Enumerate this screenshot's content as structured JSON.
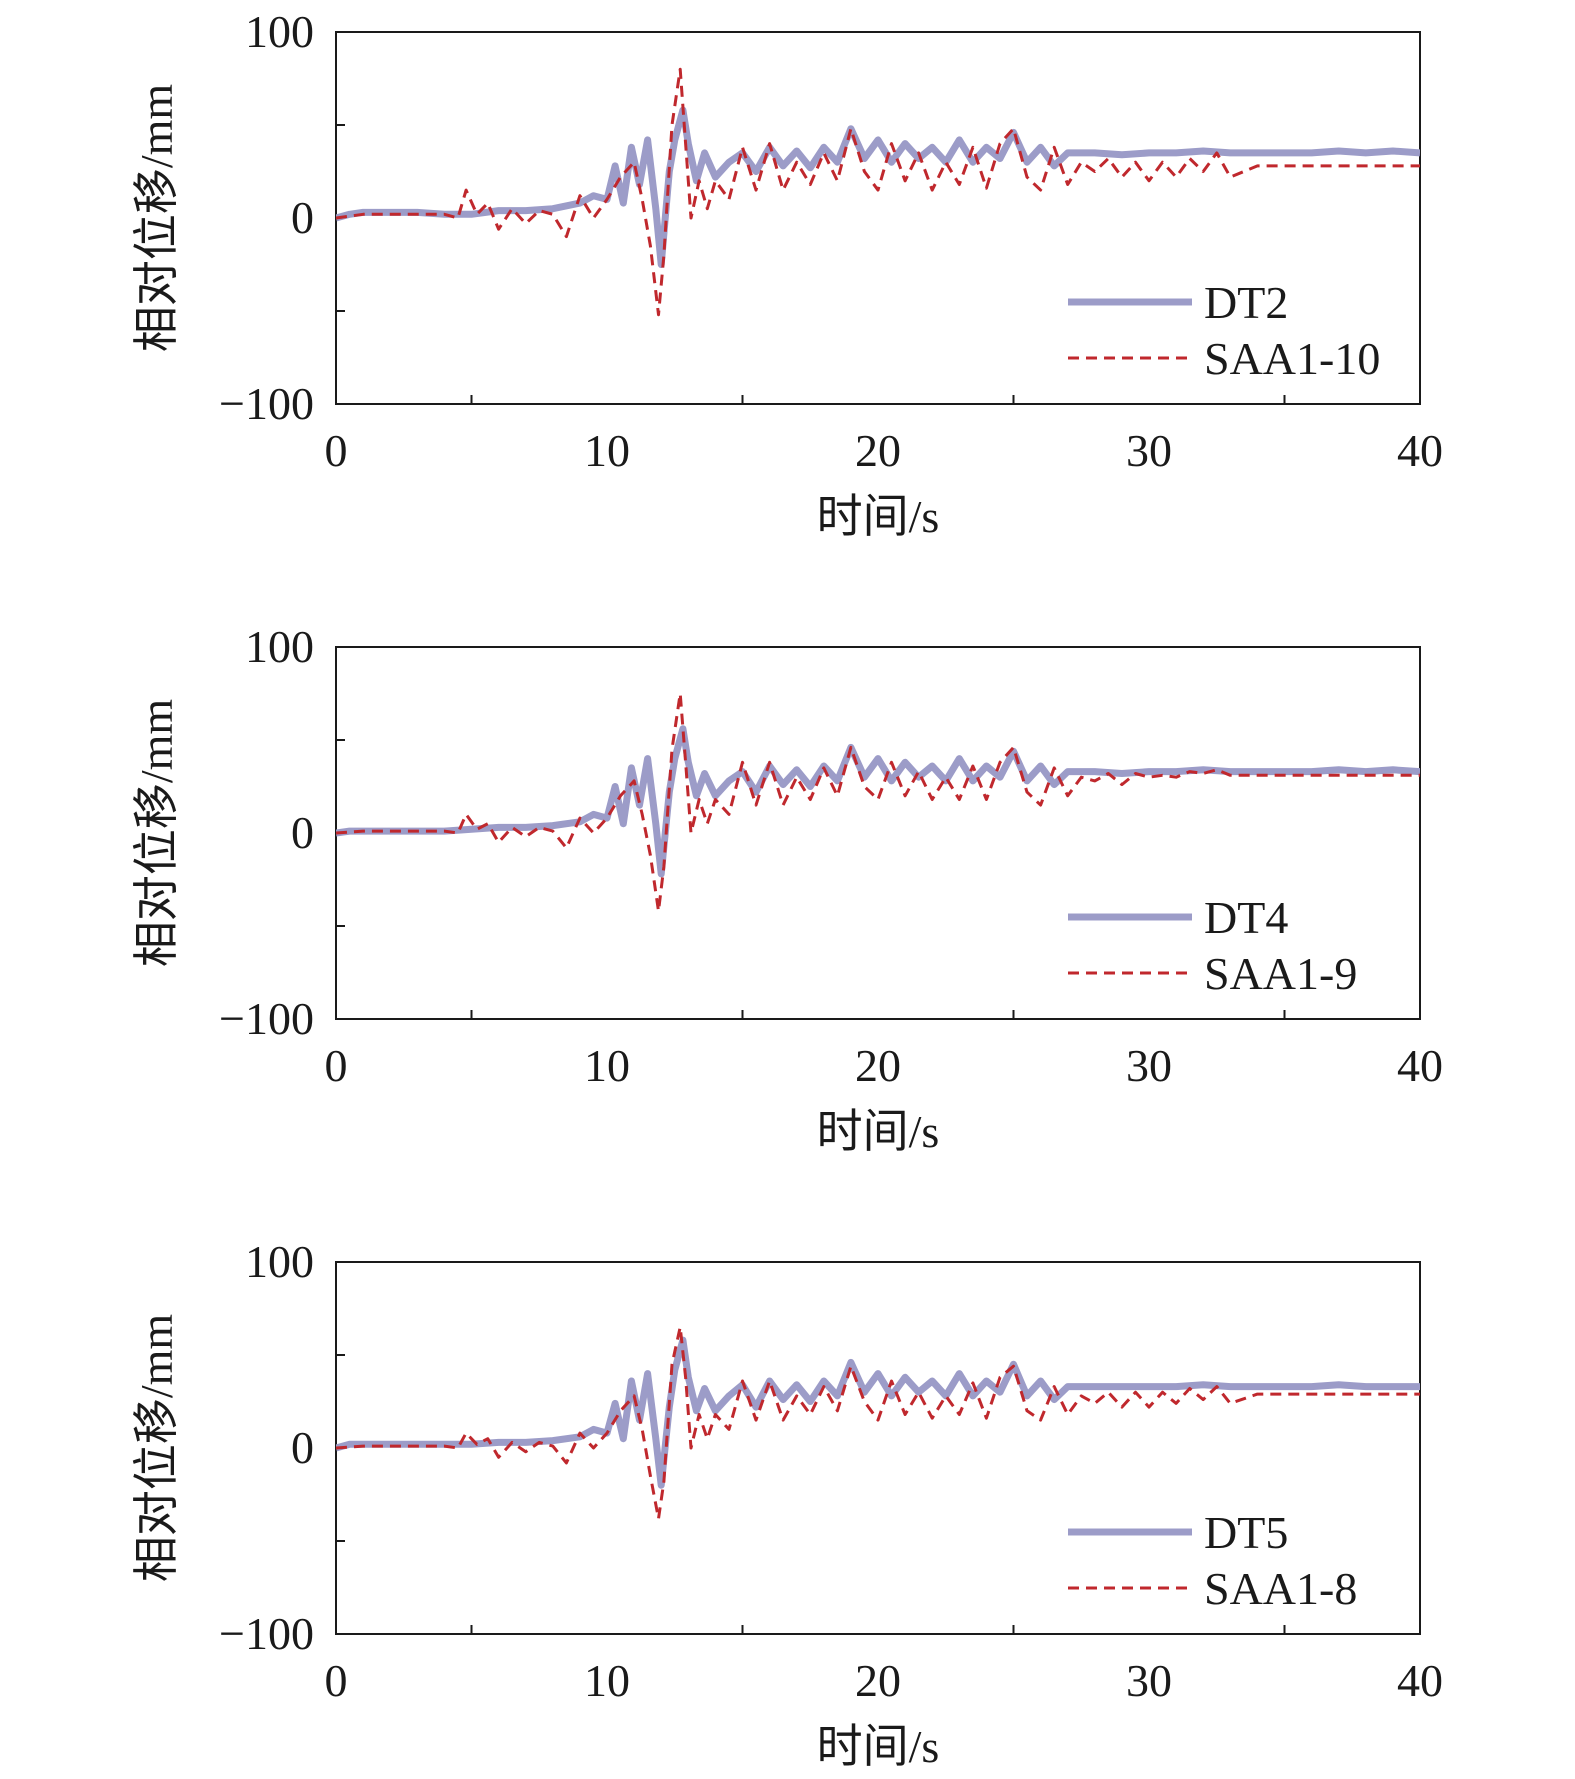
{
  "colors": {
    "dt_series": "#9c9cc8",
    "saa_series": "#c0282d",
    "axes": "#1a1a1a"
  },
  "chart_data": [
    {
      "type": "line",
      "xlabel": "时间/s",
      "ylabel": "相对位移/mm",
      "xlim": [
        0,
        40
      ],
      "ylim": [
        -100,
        100
      ],
      "xticks": [
        0,
        10,
        20,
        30,
        40
      ],
      "yticks": [
        -100,
        0,
        100
      ],
      "grid": false,
      "legend_position": "bottom-right",
      "series": [
        {
          "name": "DT2",
          "style": "solid-thick",
          "x": [
            0,
            0.5,
            1,
            2,
            3,
            4,
            5,
            6,
            7,
            8,
            9,
            9.5,
            10,
            10.3,
            10.6,
            10.9,
            11.2,
            11.5,
            11.8,
            12.0,
            12.3,
            12.5,
            12.8,
            13.0,
            13.3,
            13.6,
            14.0,
            14.5,
            15.0,
            15.5,
            16.0,
            16.5,
            17.0,
            17.5,
            18.0,
            18.5,
            19.0,
            19.5,
            20.0,
            20.5,
            21.0,
            21.5,
            22.0,
            22.5,
            23.0,
            23.5,
            24.0,
            24.5,
            25.0,
            25.5,
            26.0,
            26.5,
            27.0,
            28,
            29,
            30,
            31,
            32,
            33,
            34,
            35,
            36,
            37,
            38,
            39,
            40
          ],
          "y": [
            0,
            2,
            3,
            3,
            3,
            2,
            2,
            4,
            4,
            5,
            8,
            12,
            10,
            28,
            8,
            38,
            18,
            42,
            5,
            -25,
            25,
            42,
            58,
            40,
            20,
            35,
            22,
            30,
            35,
            25,
            38,
            28,
            36,
            27,
            38,
            30,
            48,
            32,
            42,
            30,
            40,
            32,
            38,
            30,
            42,
            30,
            38,
            32,
            46,
            30,
            38,
            28,
            35,
            35,
            34,
            35,
            35,
            36,
            35,
            35,
            35,
            35,
            36,
            35,
            36,
            35
          ]
        },
        {
          "name": "SAA1-10",
          "style": "dashed",
          "x": [
            0,
            1,
            2,
            3,
            4,
            4.5,
            4.8,
            5.2,
            5.6,
            6.0,
            6.5,
            7.0,
            7.5,
            8.0,
            8.5,
            9.0,
            9.5,
            10.0,
            10.5,
            11.0,
            11.3,
            11.6,
            11.9,
            12.1,
            12.4,
            12.7,
            12.9,
            13.1,
            13.4,
            13.7,
            14.0,
            14.5,
            15.0,
            15.5,
            16.0,
            16.5,
            17.0,
            17.5,
            18.0,
            18.5,
            19.0,
            19.5,
            20.0,
            20.5,
            21.0,
            21.5,
            22.0,
            22.5,
            23.0,
            23.5,
            24.0,
            24.5,
            25.0,
            25.5,
            26.0,
            26.5,
            27.0,
            27.5,
            28.0,
            28.5,
            29.0,
            29.5,
            30.0,
            30.5,
            31.0,
            31.5,
            32.0,
            32.5,
            33.0,
            34,
            35,
            36,
            37,
            38,
            39,
            40
          ],
          "y": [
            0,
            2,
            2,
            2,
            2,
            0,
            15,
            2,
            8,
            -6,
            5,
            -3,
            4,
            2,
            -10,
            12,
            0,
            10,
            22,
            30,
            10,
            -15,
            -52,
            -20,
            50,
            80,
            40,
            0,
            20,
            5,
            20,
            10,
            38,
            15,
            40,
            15,
            30,
            18,
            35,
            20,
            48,
            25,
            15,
            40,
            20,
            35,
            15,
            30,
            18,
            38,
            16,
            40,
            48,
            22,
            15,
            38,
            18,
            30,
            25,
            32,
            22,
            30,
            20,
            30,
            22,
            32,
            25,
            35,
            22,
            28,
            28,
            28,
            28,
            28,
            28,
            28
          ]
        }
      ]
    },
    {
      "type": "line",
      "xlabel": "时间/s",
      "ylabel": "相对位移/mm",
      "xlim": [
        0,
        40
      ],
      "ylim": [
        -100,
        100
      ],
      "xticks": [
        0,
        10,
        20,
        30,
        40
      ],
      "yticks": [
        -100,
        0,
        100
      ],
      "grid": false,
      "legend_position": "bottom-right",
      "series": [
        {
          "name": "DT4",
          "style": "solid-thick",
          "x": [
            0,
            0.5,
            1,
            2,
            3,
            4,
            5,
            6,
            7,
            8,
            9,
            9.5,
            10,
            10.3,
            10.6,
            10.9,
            11.2,
            11.5,
            11.8,
            12.0,
            12.3,
            12.5,
            12.8,
            13.0,
            13.3,
            13.6,
            14.0,
            14.5,
            15.0,
            15.5,
            16.0,
            16.5,
            17.0,
            17.5,
            18.0,
            18.5,
            19.0,
            19.5,
            20.0,
            20.5,
            21.0,
            21.5,
            22.0,
            22.5,
            23.0,
            23.5,
            24.0,
            24.5,
            25.0,
            25.5,
            26.0,
            26.5,
            27.0,
            28,
            29,
            30,
            31,
            32,
            33,
            34,
            35,
            36,
            37,
            38,
            39,
            40
          ],
          "y": [
            0,
            1,
            1,
            1,
            1,
            1,
            2,
            3,
            3,
            4,
            6,
            10,
            8,
            25,
            5,
            35,
            15,
            40,
            5,
            -22,
            22,
            40,
            56,
            38,
            20,
            32,
            20,
            28,
            33,
            22,
            36,
            26,
            34,
            25,
            36,
            28,
            46,
            30,
            40,
            28,
            38,
            30,
            36,
            28,
            40,
            28,
            36,
            30,
            44,
            28,
            36,
            26,
            33,
            33,
            32,
            33,
            33,
            34,
            33,
            33,
            33,
            33,
            34,
            33,
            34,
            33
          ]
        },
        {
          "name": "SAA1-9",
          "style": "dashed",
          "x": [
            0,
            1,
            2,
            3,
            4,
            4.5,
            4.8,
            5.2,
            5.6,
            6.0,
            6.5,
            7.0,
            7.5,
            8.0,
            8.5,
            9.0,
            9.5,
            10.0,
            10.5,
            11.0,
            11.3,
            11.6,
            11.9,
            12.1,
            12.4,
            12.7,
            12.9,
            13.1,
            13.4,
            13.7,
            14.0,
            14.5,
            15.0,
            15.5,
            16.0,
            16.5,
            17.0,
            17.5,
            18.0,
            18.5,
            19.0,
            19.5,
            20.0,
            20.5,
            21.0,
            21.5,
            22.0,
            22.5,
            23.0,
            23.5,
            24.0,
            24.5,
            25.0,
            25.5,
            26.0,
            26.5,
            27.0,
            27.5,
            28.0,
            28.5,
            29.0,
            29.5,
            30.0,
            30.5,
            31.0,
            31.5,
            32.0,
            32.5,
            33.0,
            34,
            35,
            36,
            37,
            38,
            39,
            40
          ],
          "y": [
            0,
            1,
            1,
            1,
            1,
            0,
            10,
            2,
            5,
            -5,
            3,
            -2,
            3,
            1,
            -8,
            8,
            0,
            8,
            20,
            28,
            10,
            -12,
            -42,
            -18,
            45,
            75,
            38,
            0,
            18,
            5,
            18,
            10,
            38,
            15,
            38,
            15,
            30,
            18,
            35,
            20,
            46,
            25,
            18,
            38,
            20,
            33,
            18,
            30,
            18,
            36,
            18,
            38,
            46,
            22,
            15,
            35,
            20,
            30,
            28,
            32,
            26,
            32,
            30,
            31,
            30,
            33,
            32,
            34,
            31,
            31,
            31,
            31,
            31,
            31,
            31,
            31
          ]
        }
      ]
    },
    {
      "type": "line",
      "xlabel": "时间/s",
      "ylabel": "相对位移/mm",
      "xlim": [
        0,
        40
      ],
      "ylim": [
        -100,
        100
      ],
      "xticks": [
        0,
        10,
        20,
        30,
        40
      ],
      "yticks": [
        -100,
        0,
        100
      ],
      "grid": false,
      "legend_position": "bottom-right",
      "series": [
        {
          "name": "DT5",
          "style": "solid-thick",
          "x": [
            0,
            0.5,
            1,
            2,
            3,
            4,
            5,
            6,
            7,
            8,
            9,
            9.5,
            10,
            10.3,
            10.6,
            10.9,
            11.2,
            11.5,
            11.8,
            12.0,
            12.3,
            12.5,
            12.8,
            13.0,
            13.3,
            13.6,
            14.0,
            14.5,
            15.0,
            15.5,
            16.0,
            16.5,
            17.0,
            17.5,
            18.0,
            18.5,
            19.0,
            19.5,
            20.0,
            20.5,
            21.0,
            21.5,
            22.0,
            22.5,
            23.0,
            23.5,
            24.0,
            24.5,
            25.0,
            25.5,
            26.0,
            26.5,
            27.0,
            28,
            29,
            30,
            31,
            32,
            33,
            34,
            35,
            36,
            37,
            38,
            39,
            40
          ],
          "y": [
            0,
            2,
            2,
            2,
            2,
            2,
            2,
            3,
            3,
            4,
            6,
            10,
            8,
            24,
            5,
            36,
            15,
            40,
            5,
            -20,
            22,
            42,
            58,
            38,
            20,
            32,
            20,
            28,
            34,
            22,
            36,
            26,
            34,
            25,
            36,
            28,
            46,
            30,
            40,
            28,
            38,
            30,
            36,
            28,
            40,
            28,
            36,
            30,
            45,
            28,
            36,
            26,
            33,
            33,
            33,
            33,
            33,
            34,
            33,
            33,
            33,
            33,
            34,
            33,
            33,
            33
          ]
        },
        {
          "name": "SAA1-8",
          "style": "dashed",
          "x": [
            0,
            1,
            2,
            3,
            4,
            4.5,
            4.8,
            5.2,
            5.6,
            6.0,
            6.5,
            7.0,
            7.5,
            8.0,
            8.5,
            9.0,
            9.5,
            10.0,
            10.5,
            11.0,
            11.3,
            11.6,
            11.9,
            12.1,
            12.4,
            12.7,
            12.9,
            13.1,
            13.4,
            13.7,
            14.0,
            14.5,
            15.0,
            15.5,
            16.0,
            16.5,
            17.0,
            17.5,
            18.0,
            18.5,
            19.0,
            19.5,
            20.0,
            20.5,
            21.0,
            21.5,
            22.0,
            22.5,
            23.0,
            23.5,
            24.0,
            24.5,
            25.0,
            25.5,
            26.0,
            26.5,
            27.0,
            27.5,
            28.0,
            28.5,
            29.0,
            29.5,
            30.0,
            30.5,
            31.0,
            31.5,
            32.0,
            32.5,
            33.0,
            34,
            35,
            36,
            37,
            38,
            39,
            40
          ],
          "y": [
            0,
            1,
            1,
            1,
            1,
            0,
            8,
            2,
            5,
            -5,
            3,
            -2,
            3,
            1,
            -8,
            8,
            0,
            8,
            20,
            28,
            10,
            -15,
            -38,
            -18,
            45,
            65,
            38,
            0,
            18,
            5,
            18,
            10,
            36,
            15,
            36,
            15,
            28,
            18,
            33,
            20,
            44,
            25,
            15,
            36,
            18,
            30,
            16,
            28,
            18,
            35,
            16,
            38,
            44,
            20,
            15,
            33,
            18,
            28,
            24,
            30,
            22,
            30,
            22,
            30,
            24,
            32,
            26,
            33,
            24,
            29,
            29,
            29,
            29,
            29,
            29,
            29
          ]
        }
      ]
    }
  ]
}
